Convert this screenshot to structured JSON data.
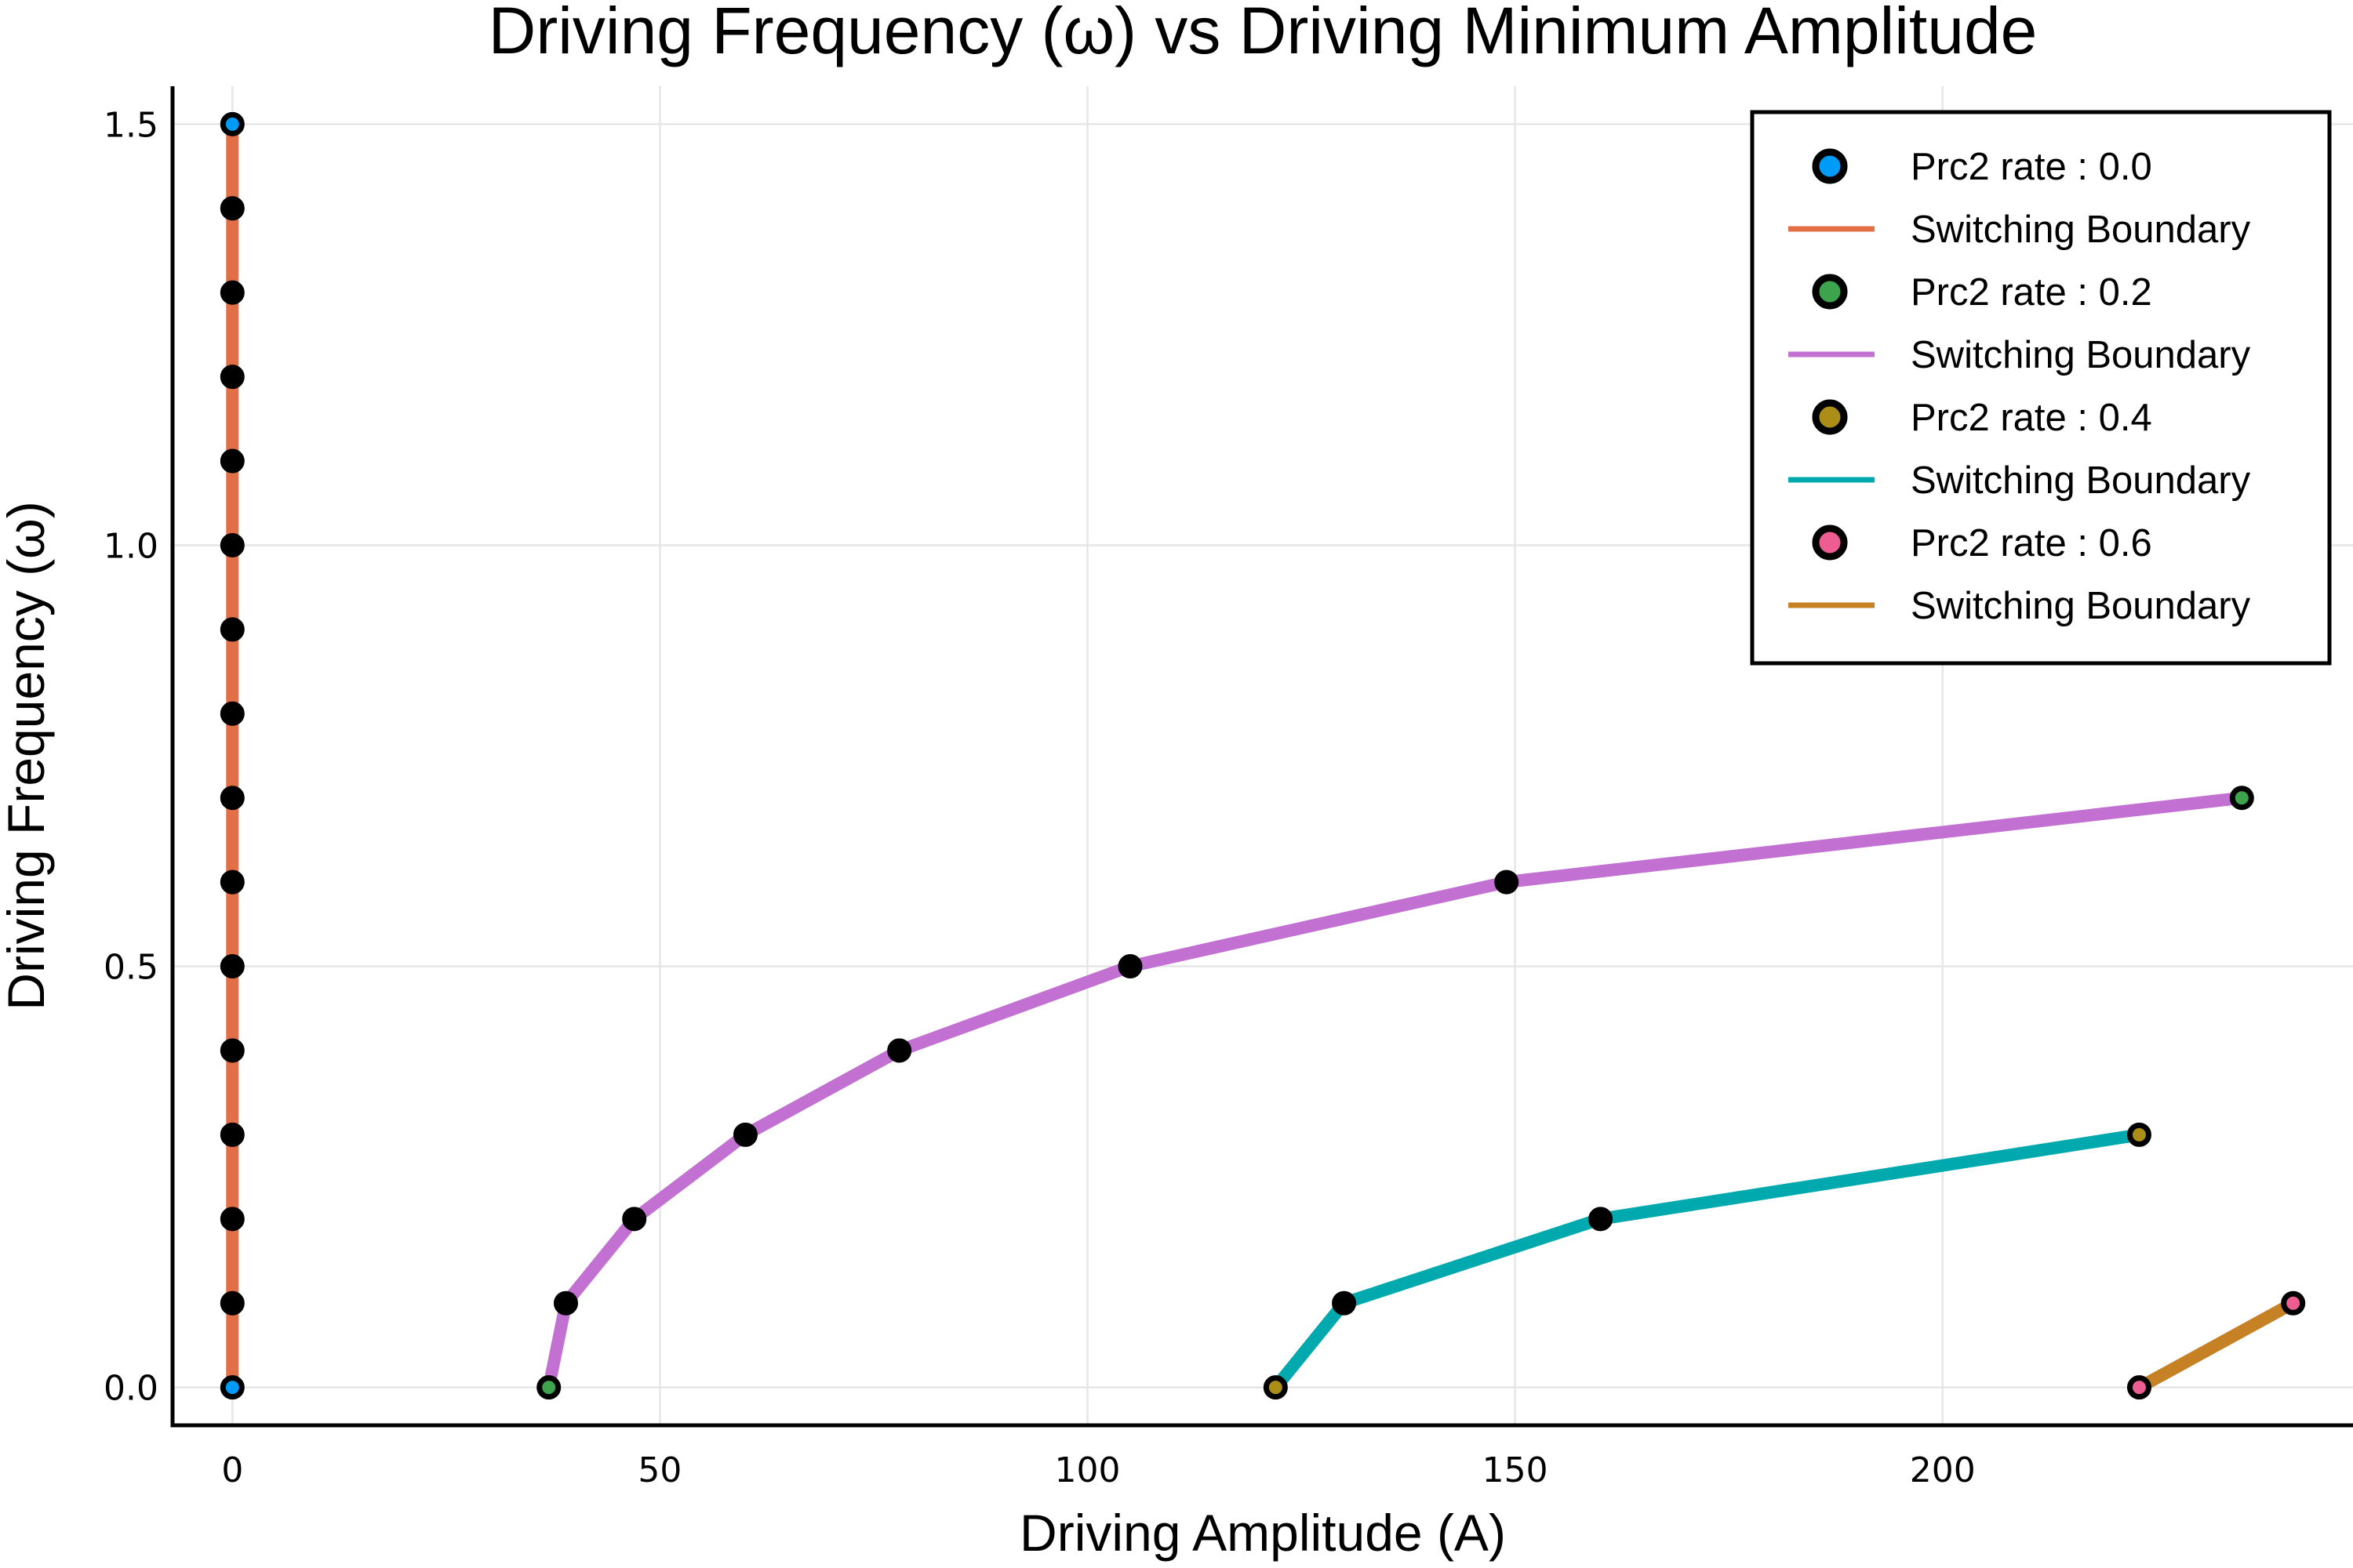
{
  "chart_data": {
    "type": "scatter",
    "title": "Driving Frequency (ω) vs Driving Minimum Amplitude",
    "xlabel": "Driving Amplitude (A)",
    "ylabel": "Driving Frequency (ω)",
    "xlim": [
      -7,
      248
    ],
    "ylim": [
      -0.045,
      1.545
    ],
    "xticks": [
      0,
      50,
      100,
      150,
      200
    ],
    "yticks": [
      0.0,
      0.5,
      1.0,
      1.5
    ],
    "xtick_labels": [
      "0",
      "50",
      "100",
      "150",
      "200"
    ],
    "ytick_labels": [
      "0.0",
      "0.5",
      "1.0",
      "1.5"
    ],
    "grid": true,
    "legend_position": "top-right",
    "series": [
      {
        "name": "Prc2 rate : 0.0",
        "marker_color": "#009af9",
        "line_name": "Switching Boundary",
        "line_color": "#e26f46",
        "x": [
          0,
          0,
          0,
          0,
          0,
          0,
          0,
          0,
          0,
          0,
          0,
          0,
          0,
          0,
          0,
          0
        ],
        "y": [
          0.0,
          0.1,
          0.2,
          0.3,
          0.4,
          0.5,
          0.6,
          0.7,
          0.8,
          0.9,
          1.0,
          1.1,
          1.2,
          1.3,
          1.4,
          1.5
        ]
      },
      {
        "name": "Prc2 rate : 0.2",
        "marker_color": "#3da44d",
        "line_name": "Switching Boundary",
        "line_color": "#c271d2",
        "x": [
          37,
          39,
          47,
          60,
          78,
          105,
          149,
          235
        ],
        "y": [
          0.0,
          0.1,
          0.2,
          0.3,
          0.4,
          0.5,
          0.6,
          0.7
        ]
      },
      {
        "name": "Prc2 rate : 0.4",
        "marker_color": "#ac8d18",
        "line_name": "Switching Boundary",
        "line_color": "#00a9ad",
        "x": [
          122,
          130,
          160,
          223
        ],
        "y": [
          0.0,
          0.1,
          0.2,
          0.3
        ]
      },
      {
        "name": "Prc2 rate : 0.6",
        "marker_color": "#ed5d92",
        "line_name": "Switching Boundary",
        "line_color": "#c68125",
        "x": [
          223,
          241
        ],
        "y": [
          0.0,
          0.1
        ]
      }
    ]
  }
}
